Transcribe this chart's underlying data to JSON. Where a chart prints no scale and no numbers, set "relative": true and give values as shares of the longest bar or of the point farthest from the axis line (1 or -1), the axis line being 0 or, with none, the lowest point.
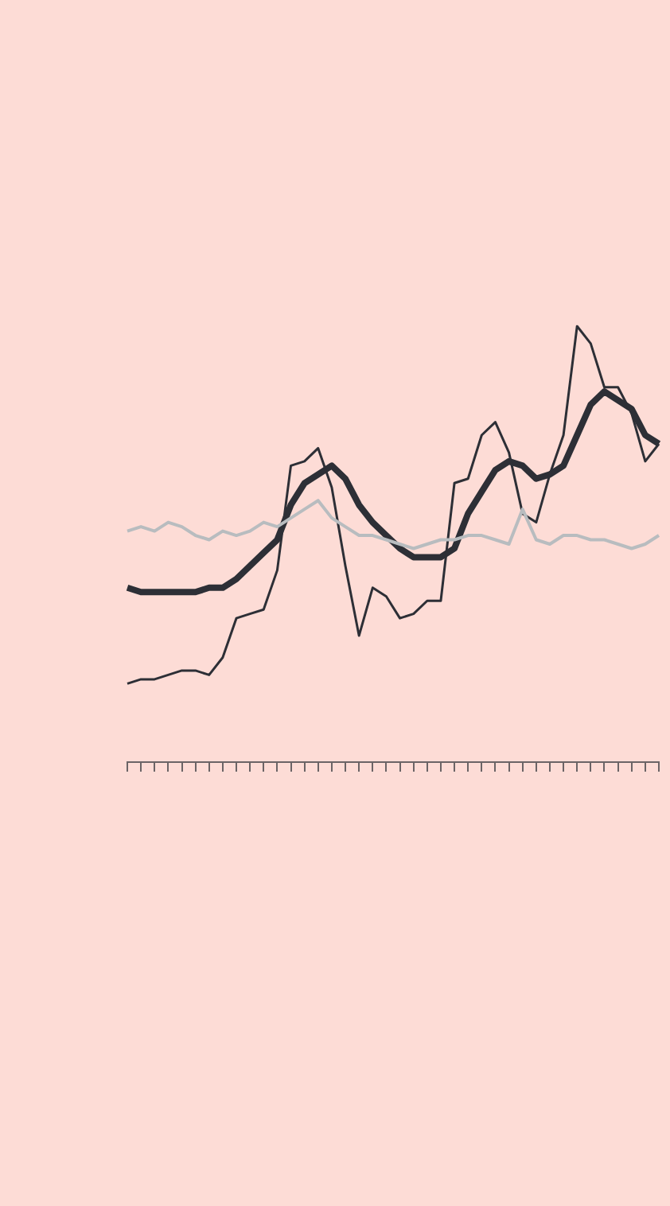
{
  "chart_data": {
    "type": "line",
    "relative": true,
    "grid": false,
    "legend": false,
    "tick_labels": false,
    "categories": [
      null,
      null,
      null,
      null,
      null,
      null,
      null,
      null,
      null,
      null,
      null,
      null,
      null,
      null,
      null,
      null,
      null,
      null,
      null,
      null,
      null,
      null,
      null,
      null,
      null,
      null,
      null,
      null,
      null,
      null,
      null,
      null,
      null,
      null,
      null,
      null,
      null,
      null,
      null,
      null
    ],
    "series": [
      {
        "color": "#2d2f36",
        "values": [
          0.4,
          0.39,
          0.39,
          0.39,
          0.39,
          0.39,
          0.4,
          0.4,
          0.42,
          0.45,
          0.48,
          0.51,
          0.59,
          0.64,
          0.66,
          0.68,
          0.65,
          0.59,
          0.55,
          0.52,
          0.49,
          0.47,
          0.47,
          0.47,
          0.49,
          0.57,
          0.62,
          0.67,
          0.69,
          0.68,
          0.65,
          0.66,
          0.68,
          0.75,
          0.82,
          0.85,
          0.83,
          0.81,
          0.75,
          0.73
        ]
      },
      {
        "color": "#2d2f36",
        "values": [
          0.18,
          0.19,
          0.19,
          0.2,
          0.21,
          0.21,
          0.2,
          0.24,
          0.33,
          0.34,
          0.35,
          0.44,
          0.68,
          0.69,
          0.72,
          0.63,
          0.45,
          0.29,
          0.4,
          0.38,
          0.33,
          0.34,
          0.37,
          0.37,
          0.64,
          0.65,
          0.75,
          0.78,
          0.71,
          0.57,
          0.55,
          0.66,
          0.75,
          1,
          0.96,
          0.86,
          0.86,
          0.8,
          0.69,
          0.73
        ]
      },
      {
        "color": "#b8bcbf",
        "values": [
          0.53,
          0.54,
          0.53,
          0.55,
          0.54,
          0.52,
          0.51,
          0.53,
          0.52,
          0.53,
          0.55,
          0.54,
          0.56,
          0.58,
          0.6,
          0.56,
          0.54,
          0.52,
          0.52,
          0.51,
          0.5,
          0.49,
          0.5,
          0.51,
          0.51,
          0.52,
          0.52,
          0.51,
          0.5,
          0.58,
          0.51,
          0.5,
          0.52,
          0.52,
          0.51,
          0.51,
          0.5,
          0.49,
          0.5,
          0.52
        ]
      }
    ]
  }
}
